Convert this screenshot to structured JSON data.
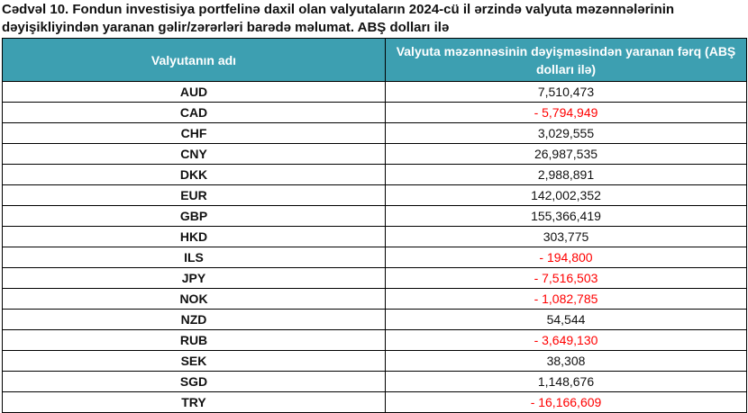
{
  "title": "Cədvəl 10. Fondun investisiya portfelinə daxil olan valyutaların 2024-cü il ərzində valyuta məzənnələrinin dəyişikliyindən yaranan gəlir/zərərləri barədə məlumat. ABŞ dolları ilə",
  "table": {
    "headers": [
      "Valyutanın adı",
      "Valyuta məzənnəsinin dəyişməsindən yaranan fərq (ABŞ dolları ilə)"
    ],
    "rows": [
      {
        "currency": "AUD",
        "value": "7,510,473"
      },
      {
        "currency": "CAD",
        "value": "- 5,794,949"
      },
      {
        "currency": "CHF",
        "value": "3,029,555"
      },
      {
        "currency": "CNY",
        "value": "26,987,535"
      },
      {
        "currency": "DKK",
        "value": "2,988,891"
      },
      {
        "currency": "EUR",
        "value": "142,002,352"
      },
      {
        "currency": "GBP",
        "value": "155,366,419"
      },
      {
        "currency": "HKD",
        "value": "303,775"
      },
      {
        "currency": "ILS",
        "value": "- 194,800"
      },
      {
        "currency": "JPY",
        "value": "- 7,516,503"
      },
      {
        "currency": "NOK",
        "value": "- 1,082,785"
      },
      {
        "currency": "NZD",
        "value": "54,544"
      },
      {
        "currency": "RUB",
        "value": "- 3,649,130"
      },
      {
        "currency": "SEK",
        "value": "38,308"
      },
      {
        "currency": "SGD",
        "value": "1,148,676"
      },
      {
        "currency": "TRY",
        "value": "- 16,166,609"
      }
    ]
  },
  "colors": {
    "header_bg": "#3d9fb1",
    "header_text": "#ffffff",
    "negative": "#ff0000",
    "text": "#111111"
  }
}
